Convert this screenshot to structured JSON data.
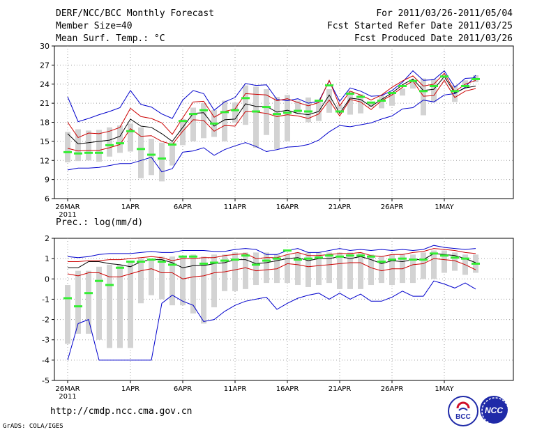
{
  "header": {
    "title": "DERF/NCC/BCC Monthly Forecast",
    "member_size": "Member Size=40",
    "variable": "Mean Surf. Temp.: °C",
    "forecast_range": "For 2011/03/26-2011/05/04",
    "started_date": "Fcst Started Refer Date 2011/03/25",
    "produced_date": "Fcst Produced Date 2011/03/26"
  },
  "footer": {
    "url": "http://cmdp.ncc.cma.gov.cn",
    "grads": "GrADS: COLA/IGES",
    "logo_bcc": "BCC",
    "logo_ncc": "NCC"
  },
  "colors": {
    "mean": "#000000",
    "std_band": "#cc0000",
    "extreme": "#0000cc",
    "box": "#d3d3d3",
    "median": "#33ee33",
    "grid": "#a0a0a0"
  },
  "chart_data": [
    {
      "type": "line",
      "title": "Mean Surf. Temp.: °C",
      "x_tick_labels": [
        "26MAR",
        "1APR",
        "6APR",
        "11APR",
        "16APR",
        "21APR",
        "26APR",
        "1MAY"
      ],
      "x_tick_days": [
        1,
        7,
        12,
        17,
        22,
        27,
        32,
        37
      ],
      "year_label": "2011",
      "days": 40,
      "ylim": [
        6,
        30
      ],
      "yticks": [
        6,
        9,
        12,
        15,
        18,
        21,
        24,
        27,
        30
      ],
      "series": [
        {
          "name": "max",
          "values": [
            22,
            18.1,
            18.6,
            19.2,
            19.7,
            20.3,
            23,
            20.8,
            20.4,
            19.3,
            18.6,
            21.5,
            23,
            22.5,
            19.9,
            21.2,
            21.9,
            24.1,
            23.8,
            23.9,
            21.6,
            21.4,
            21.7,
            21,
            21.3,
            24.5,
            21.3,
            23.4,
            22.9,
            22.1,
            22.2,
            23,
            24.3,
            26.1,
            24.6,
            24.7,
            26.1,
            23.5,
            24.9,
            25
          ]
        },
        {
          "name": "mean_plus_std",
          "values": [
            18,
            15.6,
            16.3,
            16.2,
            16.6,
            17.2,
            20.2,
            18.9,
            18.6,
            17.9,
            16.1,
            18.7,
            21.2,
            21.3,
            18.8,
            19.7,
            20.1,
            22.5,
            22.4,
            22.3,
            21.4,
            21.7,
            21.1,
            20.6,
            21.1,
            24.6,
            20.6,
            22.9,
            22.3,
            21.5,
            22.3,
            23.5,
            24.5,
            25.3,
            23.7,
            24,
            25.7,
            22.8,
            24,
            24.6
          ]
        },
        {
          "name": "mean",
          "values": [
            16.2,
            14.6,
            14.8,
            15,
            15.2,
            15.8,
            18.5,
            17.4,
            17.2,
            16.2,
            15,
            17.2,
            19.4,
            19.5,
            17.4,
            18.4,
            18.5,
            20.9,
            20.5,
            20.5,
            19.6,
            19.9,
            19.4,
            19.2,
            19.7,
            22.3,
            19.4,
            21.8,
            21.6,
            20.5,
            21.6,
            22.6,
            23.9,
            24.8,
            23,
            23.2,
            25.2,
            22.6,
            23.4,
            23.7
          ]
        },
        {
          "name": "mean_minus_std",
          "values": [
            13.9,
            13.5,
            13.6,
            13.6,
            14,
            14.5,
            17,
            15.8,
            15.9,
            15,
            14.5,
            16.6,
            18.4,
            18.3,
            16.6,
            17.5,
            17.4,
            19.7,
            19.6,
            19.4,
            18.9,
            19.2,
            19,
            18.6,
            19.3,
            21.5,
            19,
            21.6,
            21.2,
            20,
            21.4,
            22.3,
            23.5,
            24.5,
            22.1,
            22.2,
            24.6,
            21.9,
            22.9,
            23.3
          ]
        },
        {
          "name": "min",
          "values": [
            10.5,
            10.8,
            10.8,
            10.9,
            11.2,
            11.5,
            11.5,
            12,
            12.5,
            10.2,
            10.7,
            13.3,
            13.5,
            14,
            12.8,
            13.7,
            14.3,
            14.8,
            14.2,
            13.4,
            13.7,
            14.1,
            14.2,
            14.5,
            15.2,
            16.5,
            17.5,
            17.3,
            17.6,
            17.9,
            18.5,
            19,
            20.1,
            20.3,
            21.5,
            21.2,
            22.3,
            22.5,
            23.5,
            25.4
          ]
        },
        {
          "name": "box_low",
          "values": [
            11.7,
            11.9,
            12,
            11.8,
            12.6,
            13.2,
            13.4,
            9.2,
            9.7,
            8.7,
            11.2,
            14.4,
            15,
            15.5,
            15.7,
            15,
            17.9,
            17.6,
            14,
            16,
            13.8,
            15,
            19.3,
            18,
            18.2,
            19.5,
            20,
            19.2,
            19.4,
            20.4,
            20.2,
            20.6,
            22.2,
            23.3,
            19.1,
            21.2,
            24.6,
            21.2,
            23.5,
            24.3
          ]
        },
        {
          "name": "box_high",
          "values": [
            16.5,
            16.9,
            16.7,
            16.8,
            17.2,
            17.5,
            17.8,
            17.2,
            15.4,
            14.8,
            14.9,
            18.5,
            20.3,
            21,
            19.9,
            21.4,
            21.1,
            23.8,
            23.6,
            23.2,
            22,
            22.3,
            21.4,
            21.9,
            21.5,
            23.2,
            20.8,
            22.9,
            22.4,
            21.2,
            22.2,
            22.5,
            23.3,
            24.5,
            24.9,
            24.8,
            24.8,
            23.8,
            24.6,
            25.4
          ]
        },
        {
          "name": "median",
          "values": [
            13.3,
            13.1,
            13.2,
            13.2,
            14.4,
            14.7,
            16.6,
            13.8,
            12.9,
            12.3,
            14.5,
            18.2,
            19.3,
            19.9,
            17.8,
            19.6,
            19.9,
            21.8,
            19.7,
            20.4,
            19.3,
            19.5,
            19.8,
            19.7,
            21.4,
            23.8,
            19.7,
            22.5,
            22,
            21.1,
            21.4,
            22.6,
            23.7,
            24.5,
            22.9,
            23.7,
            25.2,
            22.9,
            23.7,
            24.8
          ]
        }
      ]
    },
    {
      "type": "line",
      "title": "Prec.: log(mm/d)",
      "x_tick_labels": [
        "26MAR",
        "1APR",
        "6APR",
        "11APR",
        "16APR",
        "21APR",
        "26APR",
        "1MAY"
      ],
      "x_tick_days": [
        1,
        7,
        12,
        17,
        22,
        27,
        32,
        37
      ],
      "year_label": "2011",
      "days": 40,
      "ylim": [
        -5,
        2
      ],
      "yticks": [
        -5,
        -4,
        -3,
        -2,
        -1,
        0,
        1,
        2
      ],
      "series": [
        {
          "name": "max",
          "values": [
            1.1,
            1.05,
            1.1,
            1.2,
            1.25,
            1.25,
            1.25,
            1.3,
            1.35,
            1.3,
            1.3,
            1.4,
            1.4,
            1.4,
            1.35,
            1.35,
            1.45,
            1.5,
            1.45,
            1.2,
            1.2,
            1.4,
            1.5,
            1.3,
            1.3,
            1.4,
            1.5,
            1.4,
            1.45,
            1.4,
            1.45,
            1.4,
            1.45,
            1.4,
            1.45,
            1.65,
            1.55,
            1.5,
            1.45,
            1.5
          ]
        },
        {
          "name": "mean_plus_std",
          "values": [
            0.85,
            0.85,
            0.9,
            0.9,
            0.95,
            0.95,
            1,
            1.05,
            1.1,
            1.05,
            0.9,
            1,
            1,
            1.05,
            1.05,
            1.15,
            1.2,
            1.25,
            1,
            1.05,
            1.05,
            1.2,
            1.3,
            1.15,
            1.15,
            1.2,
            1.25,
            1.25,
            1.3,
            1.15,
            1.1,
            1.2,
            1.2,
            1.3,
            1.35,
            1.5,
            1.45,
            1.4,
            1.3,
            1.25
          ]
        },
        {
          "name": "mean",
          "values": [
            0.55,
            0.55,
            0.85,
            0.85,
            0.75,
            0.7,
            0.6,
            0.85,
            0.95,
            0.95,
            0.8,
            0.55,
            0.65,
            0.65,
            0.75,
            0.8,
            0.95,
            0.95,
            0.75,
            0.8,
            0.9,
            1,
            1.05,
            0.9,
            1,
            1,
            1.1,
            1,
            1.1,
            0.95,
            0.75,
            0.9,
            0.85,
            0.95,
            0.95,
            1.25,
            1.2,
            1.15,
            1,
            0.8
          ]
        },
        {
          "name": "mean_minus_std",
          "values": [
            0.25,
            0.15,
            0.3,
            0.3,
            0.1,
            0.1,
            0.25,
            0.4,
            0.5,
            0.3,
            0.3,
            0,
            0.1,
            0.15,
            0.3,
            0.35,
            0.45,
            0.55,
            0.4,
            0.45,
            0.5,
            0.75,
            0.7,
            0.6,
            0.65,
            0.7,
            0.75,
            0.8,
            0.8,
            0.55,
            0.4,
            0.5,
            0.5,
            0.7,
            0.75,
            1,
            0.95,
            0.9,
            0.7,
            0.45
          ]
        },
        {
          "name": "min",
          "values": [
            -4,
            -2.2,
            -2,
            -4,
            -4,
            -4,
            -4,
            -4,
            -4,
            -1.2,
            -0.8,
            -1.1,
            -1.3,
            -2.1,
            -2,
            -1.6,
            -1.3,
            -1.1,
            -1,
            -0.9,
            -1.5,
            -1.2,
            -0.95,
            -0.8,
            -0.7,
            -1,
            -0.7,
            -1,
            -0.75,
            -1.1,
            -1.1,
            -0.9,
            -0.6,
            -0.85,
            -0.85,
            -0.1,
            -0.25,
            -0.45,
            -0.2,
            -0.5
          ]
        },
        {
          "name": "box_low",
          "values": [
            -3.2,
            -2.7,
            -2.7,
            -3,
            -3.4,
            -3.4,
            -3.4,
            -1.2,
            -0.8,
            -1,
            -1.3,
            -1.3,
            -1.7,
            -2.2,
            -1.4,
            -0.6,
            -0.6,
            -0.5,
            -0.3,
            -0.2,
            -0.2,
            -0.2,
            -0.3,
            -0.4,
            -0.3,
            -0.2,
            -0.5,
            -0.5,
            -0.5,
            -0.3,
            -0.2,
            -0.3,
            -0.2,
            -0.2,
            0,
            0,
            0.3,
            0.4,
            0.2,
            0.3
          ]
        },
        {
          "name": "box_high",
          "values": [
            -0.3,
            0.4,
            0.4,
            0.6,
            0.7,
            0.7,
            0.8,
            1,
            1,
            1.1,
            1.1,
            1.1,
            1.2,
            1.1,
            1.2,
            1.2,
            1.3,
            1.3,
            1.3,
            1.3,
            1.2,
            1.2,
            1.3,
            1.3,
            1.3,
            1.3,
            1.3,
            1.3,
            1.3,
            1.2,
            1.1,
            1.2,
            1.2,
            1.2,
            1.3,
            1.4,
            1.4,
            1.3,
            1.2,
            1.2
          ]
        },
        {
          "name": "median",
          "values": [
            -0.95,
            -1.35,
            -0.7,
            -0.1,
            -0.3,
            0.55,
            0.85,
            0.85,
            0.95,
            0.85,
            0.7,
            1.1,
            1.1,
            0.75,
            0.8,
            0.9,
            0.95,
            1.15,
            0.7,
            0.9,
            1,
            1.4,
            0.95,
            1,
            1.05,
            1.15,
            1.1,
            1.15,
            1.15,
            1.1,
            0.85,
            0.95,
            1,
            0.95,
            0.95,
            1.25,
            1.15,
            1.05,
            1,
            0.75
          ]
        }
      ]
    }
  ]
}
